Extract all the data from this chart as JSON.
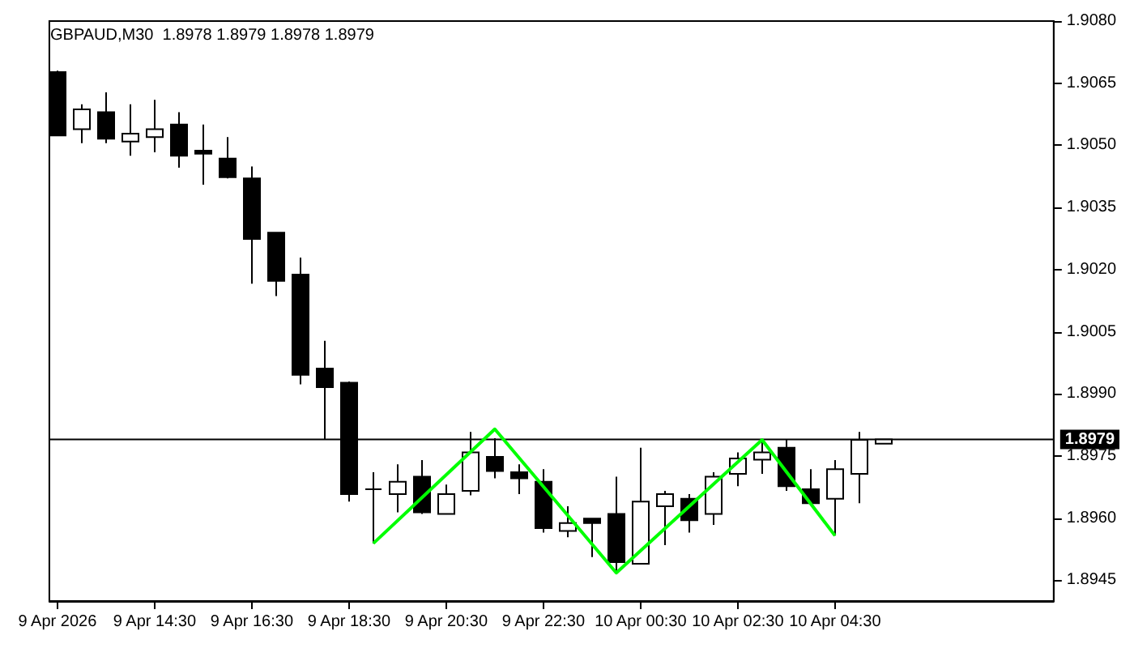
{
  "chart_data": {
    "type": "candlestick",
    "title": "GBPAUD,M30  1.8978 1.8979 1.8978 1.8979",
    "x": [
      "2026-04-09T12:30",
      "2026-04-09T13:00",
      "2026-04-09T13:30",
      "2026-04-09T14:00",
      "2026-04-09T14:30",
      "2026-04-09T15:00",
      "2026-04-09T15:30",
      "2026-04-09T16:00",
      "2026-04-09T16:30",
      "2026-04-09T17:00",
      "2026-04-09T17:30",
      "2026-04-09T18:00",
      "2026-04-09T18:30",
      "2026-04-09T19:00",
      "2026-04-09T19:30",
      "2026-04-09T20:00",
      "2026-04-09T20:30",
      "2026-04-09T21:00",
      "2026-04-09T21:30",
      "2026-04-09T22:00",
      "2026-04-09T22:30",
      "2026-04-09T23:00",
      "2026-04-09T23:30",
      "2026-04-10T00:00",
      "2026-04-10T00:30",
      "2026-04-10T01:00",
      "2026-04-10T01:30",
      "2026-04-10T02:00",
      "2026-04-10T02:30",
      "2026-04-10T03:00",
      "2026-04-10T03:30",
      "2026-04-10T04:00",
      "2026-04-10T04:30",
      "2026-04-10T05:00",
      "2026-04-10T05:30"
    ],
    "ohlc": [
      [
        1.90677,
        1.9068,
        1.90524,
        1.90524
      ],
      [
        1.90539,
        1.90599,
        1.90505,
        1.90587
      ],
      [
        1.9058,
        1.90628,
        1.90505,
        1.90516
      ],
      [
        1.90509,
        1.90599,
        1.90475,
        1.90528
      ],
      [
        1.9052,
        1.9061,
        1.90483,
        1.90539
      ],
      [
        1.9055,
        1.9058,
        1.90446,
        1.90475
      ],
      [
        1.90487,
        1.9055,
        1.90405,
        1.9048
      ],
      [
        1.90468,
        1.9052,
        1.9042,
        1.90423
      ],
      [
        1.9042,
        1.90449,
        1.90166,
        1.90274
      ],
      [
        1.90289,
        1.9029,
        1.90136,
        1.90173
      ],
      [
        1.90188,
        1.90229,
        1.89923,
        1.89946
      ],
      [
        1.89961,
        1.90028,
        1.89789,
        1.89916
      ],
      [
        1.89927,
        1.8993,
        1.8964,
        1.89658
      ],
      [
        1.8967,
        1.89711,
        1.89539,
        1.8967
      ],
      [
        1.89658,
        1.8973,
        1.89614,
        1.89688
      ],
      [
        1.897,
        1.8974,
        1.8961,
        1.89614
      ],
      [
        1.8961,
        1.89681,
        1.8961,
        1.89658
      ],
      [
        1.89666,
        1.89808,
        1.89655,
        1.89759
      ],
      [
        1.89748,
        1.89793,
        1.89696,
        1.89714
      ],
      [
        1.89711,
        1.8973,
        1.89658,
        1.89696
      ],
      [
        1.89688,
        1.89718,
        1.89565,
        1.89576
      ],
      [
        1.89569,
        1.89629,
        1.89554,
        1.89588
      ],
      [
        1.89599,
        1.896,
        1.89506,
        1.89588
      ],
      [
        1.8961,
        1.897,
        1.89472,
        1.89494
      ],
      [
        1.8949,
        1.8977,
        1.8949,
        1.8964
      ],
      [
        1.89629,
        1.89666,
        1.89535,
        1.89658
      ],
      [
        1.89647,
        1.89658,
        1.89565,
        1.89595
      ],
      [
        1.8961,
        1.89711,
        1.89584,
        1.897
      ],
      [
        1.89707,
        1.89759,
        1.89677,
        1.89744
      ],
      [
        1.89741,
        1.89789,
        1.89707,
        1.89759
      ],
      [
        1.8977,
        1.89789,
        1.89666,
        1.89677
      ],
      [
        1.8967,
        1.89718,
        1.89636,
        1.89636
      ],
      [
        1.89647,
        1.8974,
        1.89558,
        1.89718
      ],
      [
        1.89707,
        1.89808,
        1.89636,
        1.89789
      ],
      [
        1.8978,
        1.8979,
        1.8978,
        1.8979
      ]
    ],
    "color": "#000000",
    "series": [
      {
        "type": "line",
        "color": "#00ff00",
        "x": [
          "2026-04-09T19:00",
          "2026-04-09T21:30",
          "2026-04-10T00:00",
          "2026-04-10T03:00",
          "2026-04-10T04:30"
        ],
        "values": [
          1.89539,
          1.89815,
          1.89468,
          1.89789,
          1.89558
        ]
      }
    ],
    "marker": "none",
    "xlim": [
      "2026-04-09T12:20",
      "2026-04-10T09:00"
    ],
    "xticks": [
      {
        "value": "2026-04-09T12:30",
        "label": "9 Apr 2026"
      },
      {
        "value": "2026-04-09T14:30",
        "label": "9 Apr 14:30"
      },
      {
        "value": "2026-04-09T16:30",
        "label": "9 Apr 16:30"
      },
      {
        "value": "2026-04-09T18:30",
        "label": "9 Apr 18:30"
      },
      {
        "value": "2026-04-09T20:30",
        "label": "9 Apr 20:30"
      },
      {
        "value": "2026-04-09T22:30",
        "label": "9 Apr 22:30"
      },
      {
        "value": "2026-04-10T00:30",
        "label": "10 Apr 00:30"
      },
      {
        "value": "2026-04-10T02:30",
        "label": "10 Apr 02:30"
      },
      {
        "value": "2026-04-10T04:30",
        "label": "10 Apr 04:30"
      }
    ],
    "ylim": [
      1.894,
      1.908
    ],
    "yticks": [
      {
        "value": 1.8945,
        "label": "1.8945"
      },
      {
        "value": 1.896,
        "label": "1.8960"
      },
      {
        "value": 1.8975,
        "label": "1.8975"
      },
      {
        "value": 1.899,
        "label": "1.8990"
      },
      {
        "value": 1.9005,
        "label": "1.9005"
      },
      {
        "value": 1.902,
        "label": "1.9020"
      },
      {
        "value": 1.9035,
        "label": "1.9035"
      },
      {
        "value": 1.905,
        "label": "1.9050"
      },
      {
        "value": 1.9065,
        "label": "1.9065"
      },
      {
        "value": 1.908,
        "label": "1.9080"
      }
    ],
    "ref_lines": [
      {
        "axis": "y",
        "value": 1.8979,
        "label": "1.8979",
        "color": "#000000"
      }
    ],
    "grid": false
  }
}
